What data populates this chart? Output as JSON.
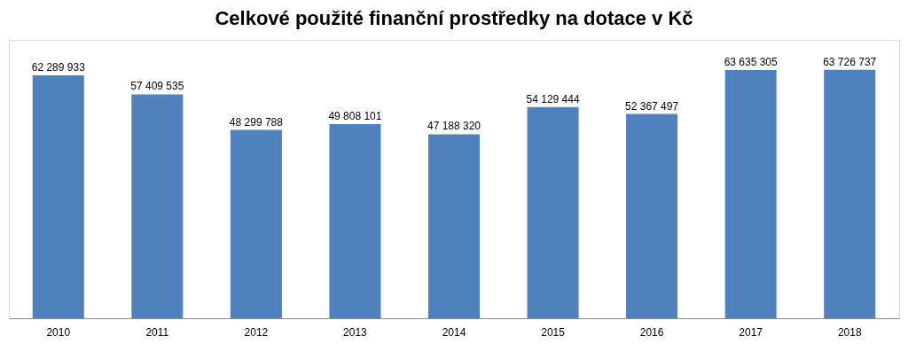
{
  "chart_data": {
    "type": "bar",
    "title": "Celkové použité finanční prostředky na dotace v Kč",
    "categories": [
      "2010",
      "2011",
      "2012",
      "2013",
      "2014",
      "2015",
      "2016",
      "2017",
      "2018"
    ],
    "values": [
      62289933,
      57409535,
      48299788,
      49808101,
      47188320,
      54129444,
      52367497,
      63635305,
      63726737
    ],
    "value_labels": [
      "62 289 933",
      "57 409 535",
      "48 299 788",
      "49 808 101",
      "47 188 320",
      "54 129 444",
      "52 367 497",
      "63 635 305",
      "63 726 737"
    ],
    "color": "#4f81bd",
    "grid": false
  }
}
